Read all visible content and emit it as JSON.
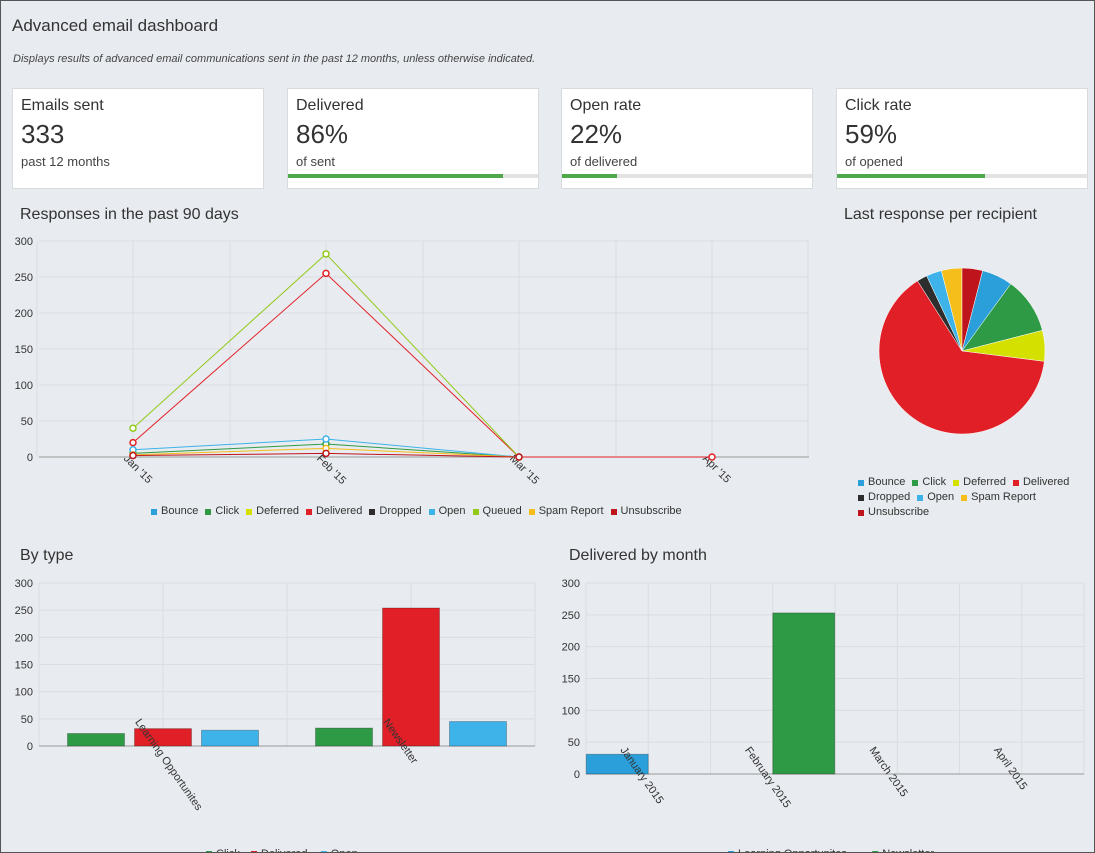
{
  "header": {
    "title": "Advanced email dashboard",
    "subtitle": "Displays results of advanced email communications sent in the past 12 months, unless otherwise indicated."
  },
  "stats": [
    {
      "label": "Emails sent",
      "value": "333",
      "sub": "past 12 months",
      "progress": null
    },
    {
      "label": "Delivered",
      "value": "86%",
      "sub": "of sent",
      "progress": 0.86
    },
    {
      "label": "Open rate",
      "value": "22%",
      "sub": "of delivered",
      "progress": 0.22
    },
    {
      "label": "Click rate",
      "value": "59%",
      "sub": "of opened",
      "progress": 0.59
    }
  ],
  "colors": {
    "Bounce": "#2b9fd9",
    "Click": "#2f9a45",
    "Deferred": "#d4e000",
    "Delivered": "#e11f26",
    "Dropped": "#2d2d2d",
    "Open": "#3db3ea",
    "Queued": "#94c91a",
    "Spam Report": "#f5be1a",
    "Unsubscribe": "#c0141c",
    "accent": "#4ea94b"
  },
  "sections": {
    "responses_title": "Responses in the past 90 days",
    "pie_title": "Last response per recipient",
    "type_title": "By type",
    "month_title": "Delivered by month"
  },
  "chart_data": [
    {
      "type": "line",
      "title": "Responses in the past 90 days",
      "x": [
        "Jan '15",
        "Feb '15",
        "Mar '15",
        "Apr '15"
      ],
      "ylim": [
        0,
        300
      ],
      "yticks": [
        0,
        50,
        100,
        150,
        200,
        250,
        300
      ],
      "grid": true,
      "legend": "bottom",
      "series": [
        {
          "name": "Bounce",
          "values": [
            null,
            null,
            null,
            null
          ]
        },
        {
          "name": "Click",
          "values": [
            5,
            18,
            0,
            null
          ]
        },
        {
          "name": "Deferred",
          "values": [
            null,
            null,
            null,
            null
          ]
        },
        {
          "name": "Delivered",
          "values": [
            20,
            255,
            0,
            0
          ]
        },
        {
          "name": "Dropped",
          "values": [
            null,
            null,
            null,
            null
          ]
        },
        {
          "name": "Open",
          "values": [
            10,
            25,
            0,
            null
          ]
        },
        {
          "name": "Queued",
          "values": [
            40,
            282,
            0,
            null
          ]
        },
        {
          "name": "Spam Report",
          "values": [
            3,
            12,
            0,
            null
          ]
        },
        {
          "name": "Unsubscribe",
          "values": [
            2,
            5,
            0,
            null
          ]
        }
      ]
    },
    {
      "type": "pie",
      "title": "Last response per recipient",
      "legend": "bottom",
      "slices": [
        {
          "name": "Bounce",
          "value": 6
        },
        {
          "name": "Click",
          "value": 11
        },
        {
          "name": "Deferred",
          "value": 6
        },
        {
          "name": "Delivered",
          "value": 64
        },
        {
          "name": "Dropped",
          "value": 2
        },
        {
          "name": "Open",
          "value": 3
        },
        {
          "name": "Spam Report",
          "value": 4
        },
        {
          "name": "Unsubscribe",
          "value": 4
        }
      ],
      "legend_items": [
        "Bounce",
        "Click",
        "Deferred",
        "Delivered",
        "Dropped",
        "Open",
        "Spam Report",
        "Unsubscribe"
      ]
    },
    {
      "type": "bar",
      "title": "By type",
      "categories": [
        "Learning Opportunites",
        "Newsletter"
      ],
      "ylim": [
        0,
        300
      ],
      "yticks": [
        0,
        50,
        100,
        150,
        200,
        250,
        300
      ],
      "grid": true,
      "legend": "bottom",
      "series": [
        {
          "name": "Click",
          "values": [
            23,
            33
          ]
        },
        {
          "name": "Delivered",
          "values": [
            32,
            254
          ]
        },
        {
          "name": "Open",
          "values": [
            29,
            45
          ]
        }
      ]
    },
    {
      "type": "bar",
      "title": "Delivered by month",
      "categories": [
        "January 2015",
        "February 2015",
        "March 2015",
        "April 2015"
      ],
      "ylim": [
        0,
        300
      ],
      "yticks": [
        0,
        50,
        100,
        150,
        200,
        250,
        300
      ],
      "grid": true,
      "legend": "bottom",
      "series": [
        {
          "name": "Learning Opportunites",
          "values": [
            31,
            0,
            0,
            0
          ]
        },
        {
          "name": "Newsletter",
          "values": [
            0,
            253,
            0,
            0
          ]
        }
      ]
    }
  ]
}
